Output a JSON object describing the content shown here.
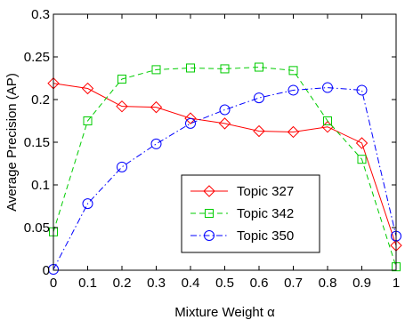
{
  "chart_data": {
    "type": "line",
    "xlabel": "Mixture Weight α",
    "ylabel": "Average Precision (AP)",
    "xlim": [
      0,
      1
    ],
    "ylim": [
      0,
      0.3
    ],
    "x_ticks": [
      "0",
      "0.1",
      "0.2",
      "0.3",
      "0.4",
      "0.5",
      "0.6",
      "0.7",
      "0.8",
      "0.9",
      "1"
    ],
    "y_ticks": [
      "0",
      "0.05",
      "0.1",
      "0.15",
      "0.2",
      "0.25",
      "0.3"
    ],
    "x": [
      0,
      0.1,
      0.2,
      0.3,
      0.4,
      0.5,
      0.6,
      0.7,
      0.8,
      0.9,
      1.0
    ],
    "legend_position": "lower-center",
    "grid": false,
    "series": [
      {
        "name": "Topic 327",
        "color": "#ff0000",
        "marker": "diamond",
        "line_style": "solid",
        "values": [
          0.219,
          0.213,
          0.192,
          0.191,
          0.178,
          0.172,
          0.163,
          0.162,
          0.168,
          0.149,
          0.029
        ]
      },
      {
        "name": "Topic 342",
        "color": "#00cc00",
        "marker": "square",
        "line_style": "dashed",
        "values": [
          0.045,
          0.175,
          0.224,
          0.235,
          0.237,
          0.236,
          0.238,
          0.234,
          0.175,
          0.13,
          0.004
        ]
      },
      {
        "name": "Topic 350",
        "color": "#0000ff",
        "marker": "circle",
        "line_style": "dashdot",
        "values": [
          0.001,
          0.078,
          0.121,
          0.148,
          0.172,
          0.188,
          0.202,
          0.211,
          0.214,
          0.211,
          0.04
        ]
      }
    ]
  }
}
